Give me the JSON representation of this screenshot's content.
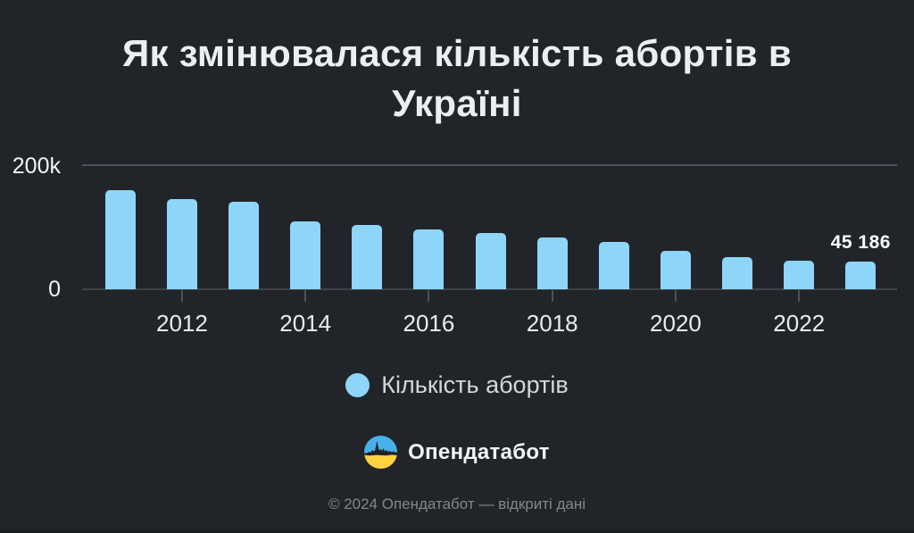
{
  "colors": {
    "background": "#21252a",
    "bar": "#8dd6fa",
    "logo_blue": "#4bb0ea",
    "logo_yellow": "#ffd23f"
  },
  "title_lines": [
    "Як змінювалася кількість абортів в",
    "Україні"
  ],
  "chart_data": {
    "type": "bar",
    "title": "Як змінювалася кількість абортів в Україні",
    "series_name": "Кількість абортів",
    "categories": [
      "2011",
      "2012",
      "2013",
      "2014",
      "2015",
      "2016",
      "2017",
      "2018",
      "2019",
      "2020",
      "2021",
      "2022",
      "2023"
    ],
    "values": [
      160000,
      146000,
      141000,
      110000,
      104000,
      97000,
      91000,
      84000,
      77000,
      62000,
      52000,
      46000,
      45186
    ],
    "ylim": [
      0,
      200000
    ],
    "yticks": [
      {
        "label": "200k",
        "value": 200000
      },
      {
        "label": "0",
        "value": 0
      }
    ],
    "xticks": [
      "2012",
      "2014",
      "2016",
      "2018",
      "2020",
      "2022"
    ],
    "bar_color": "#8dd6fa",
    "grid": "top line only",
    "legend_position": "bottom",
    "annotations": [
      {
        "category": "2023",
        "value": 45186,
        "text": "45 186"
      }
    ]
  },
  "legend": {
    "label": "Кількість абортів"
  },
  "brand": {
    "name": "Опендатабот"
  },
  "footer": {
    "copyright": "© 2024 Опендатабот — відкриті дані"
  }
}
